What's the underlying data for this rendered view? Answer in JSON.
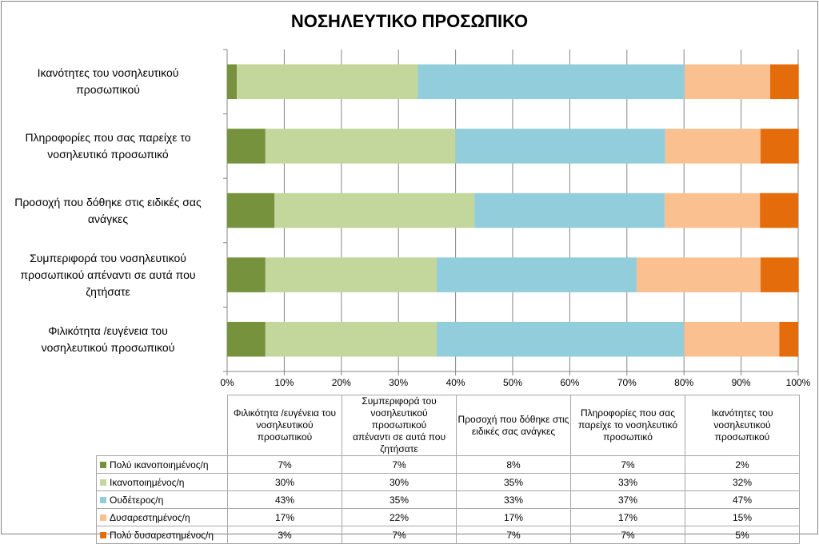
{
  "chart_data": {
    "type": "bar",
    "orientation": "horizontal",
    "stacked": "percent",
    "title": "ΝΟΣΗΛΕΥΤΙΚΟ ΠΡΟΣΩΠΙΚΟ",
    "xlim": [
      0,
      100
    ],
    "x_ticks": [
      "0%",
      "10%",
      "20%",
      "30%",
      "40%",
      "50%",
      "60%",
      "70%",
      "80%",
      "90%",
      "100%"
    ],
    "grid": true,
    "legend": "data-table-below",
    "categories": [
      "Φιλικότητα /ευγένεια του νοσηλευτικού προσωπικού",
      "Συμπεριφορά του νοσηλευτικού προσωπικού απέναντι σε αυτά που ζητήσατε",
      "Προσοχή που δόθηκε στις ειδικές σας ανάγκες",
      "Πληροφορίες που σας παρείχε το νοσηλευτικό προσωπικό",
      "Ικανότητες του νοσηλευτικού προσωπικού"
    ],
    "category_labels_chart": [
      [
        "Φιλικότητα /ευγένεια του",
        "νοσηλευτικού προσωπικού"
      ],
      [
        "Συμπεριφορά του νοσηλευτικού",
        "προσωπικού απέναντι σε αυτά που",
        "ζητήσατε"
      ],
      [
        "Προσοχή που δόθηκε στις ειδικές σας",
        "ανάγκες"
      ],
      [
        "Πληροφορίες που σας παρείχε το",
        "νοσηλευτικό προσωπικό"
      ],
      [
        "Ικανότητες του νοσηλευτικού",
        "προσωπικού"
      ]
    ],
    "table_headers": [
      [
        "Φιλικότητα /ευγένεια του",
        "νοσηλευτικού προσωπικού"
      ],
      [
        "Συμπεριφορά του",
        "νοσηλευτικού προσωπικού",
        "απέναντι σε αυτά που",
        "ζητήσατε"
      ],
      [
        "Προσοχή που δόθηκε στις",
        "ειδικές σας ανάγκες"
      ],
      [
        "Πληροφορίες που σας",
        "παρείχε το νοσηλευτικό",
        "προσωπικό"
      ],
      [
        "Ικανότητες του",
        "νοσηλευτικού προσωπικού"
      ]
    ],
    "series": [
      {
        "name": "Πολύ ικανοποιημένος/η",
        "color": "#76923c",
        "values": [
          6.7,
          6.7,
          8.3,
          6.7,
          1.7
        ],
        "labels": [
          "7%",
          "7%",
          "8%",
          "7%",
          "2%"
        ]
      },
      {
        "name": "Ικανοποιημένος/η",
        "color": "#c3d69b",
        "values": [
          30,
          30,
          35,
          33.3,
          31.7
        ],
        "labels": [
          "30%",
          "30%",
          "35%",
          "33%",
          "32%"
        ]
      },
      {
        "name": "Ουδέτερος/η",
        "color": "#92cddc",
        "values": [
          43.3,
          35,
          33.3,
          36.7,
          46.7
        ],
        "labels": [
          "43%",
          "35%",
          "33%",
          "37%",
          "47%"
        ]
      },
      {
        "name": "Δυσαρεστημένος/η",
        "color": "#fac090",
        "values": [
          16.7,
          21.7,
          16.7,
          16.7,
          15
        ],
        "labels": [
          "17%",
          "22%",
          "17%",
          "17%",
          "15%"
        ]
      },
      {
        "name": "Πολύ δυσαρεστημένος/η",
        "color": "#e46c0a",
        "values": [
          3.3,
          6.7,
          6.7,
          6.7,
          5
        ],
        "labels": [
          "3%",
          "7%",
          "7%",
          "7%",
          "5%"
        ]
      }
    ]
  }
}
